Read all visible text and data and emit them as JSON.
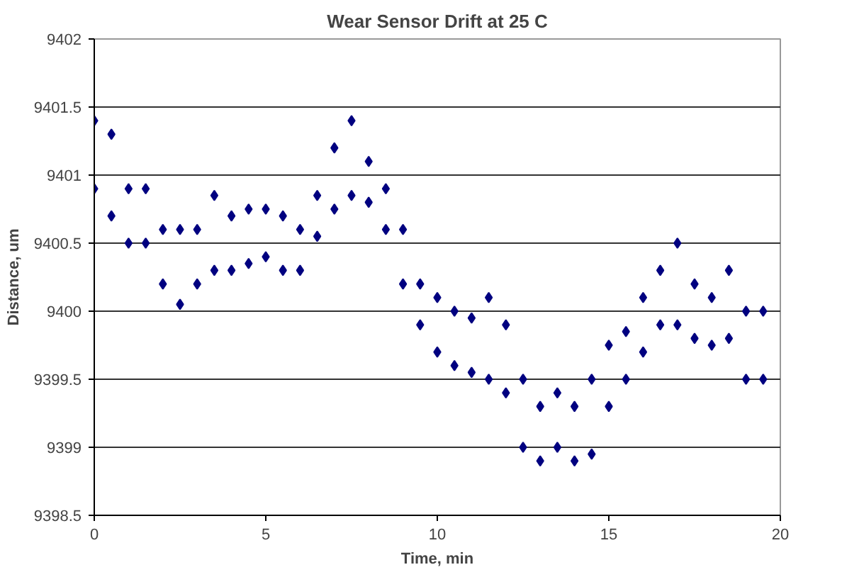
{
  "chart_data": {
    "type": "scatter",
    "title": "Wear Sensor Drift at 25 C",
    "xlabel": "Time, min",
    "ylabel": "Distance, um",
    "xlim": [
      0,
      20
    ],
    "ylim": [
      9398.5,
      9402
    ],
    "xticks": [
      0,
      5,
      10,
      15,
      20
    ],
    "yticks": [
      9398.5,
      9399,
      9399.5,
      9400,
      9400.5,
      9401,
      9401.5,
      9402
    ],
    "grid": "y",
    "marker": "diamond",
    "series": [
      {
        "color": "#000080",
        "x": [
          0,
          0,
          0.5,
          0.5,
          1,
          1,
          1.5,
          1.5,
          2,
          2,
          2.5,
          2.5,
          3,
          3,
          3.5,
          3.5,
          4,
          4,
          4.5,
          4.5,
          5,
          5,
          5.5,
          5.5,
          6,
          6,
          6.5,
          6.5,
          7,
          7,
          7.5,
          7.5,
          8,
          8,
          8.5,
          8.5,
          9,
          9,
          9.5,
          9.5,
          10,
          10,
          10.5,
          10.5,
          11,
          11,
          11.5,
          11.5,
          12,
          12,
          12.5,
          12.5,
          13,
          13,
          13.5,
          13.5,
          14,
          14,
          14.5,
          14.5,
          15,
          15,
          15.5,
          15.5,
          16,
          16,
          16.5,
          16.5,
          17,
          17,
          17.5,
          17.5,
          18,
          18,
          18.5,
          18.5,
          19,
          19,
          19.5,
          19.5
        ],
        "values": [
          9400.9,
          9401.4,
          9400.7,
          9401.3,
          9400.5,
          9400.9,
          9400.5,
          9400.9,
          9400.2,
          9400.6,
          9400.05,
          9400.6,
          9400.2,
          9400.6,
          9400.3,
          9400.85,
          9400.3,
          9400.7,
          9400.35,
          9400.75,
          9400.4,
          9400.75,
          9400.3,
          9400.7,
          9400.3,
          9400.6,
          9400.55,
          9400.85,
          9400.75,
          9401.2,
          9400.85,
          9401.4,
          9400.8,
          9401.1,
          9400.6,
          9400.9,
          9400.2,
          9400.6,
          9399.9,
          9400.2,
          9399.7,
          9400.1,
          9399.6,
          9400,
          9399.55,
          9399.95,
          9399.5,
          9400.1,
          9399.4,
          9399.9,
          9399,
          9399.5,
          9398.9,
          9399.3,
          9399,
          9399.4,
          9398.9,
          9399.3,
          9398.95,
          9399.5,
          9399.3,
          9399.75,
          9399.5,
          9399.85,
          9399.7,
          9400.1,
          9399.9,
          9400.3,
          9399.9,
          9400.5,
          9399.8,
          9400.2,
          9399.75,
          9400.1,
          9399.8,
          9400.3,
          9399.5,
          9400,
          9399.5,
          9400
        ]
      }
    ]
  }
}
